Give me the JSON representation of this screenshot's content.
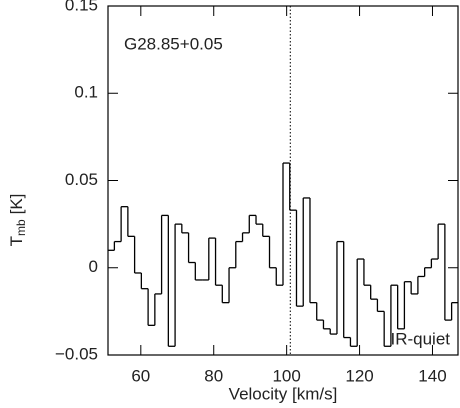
{
  "chart_data": {
    "type": "step",
    "annotations": [
      "G28.85+0.05",
      "IR-quiet"
    ],
    "xlabel": "Velocity [km/s]",
    "ylabel": {
      "main": "T",
      "sub": "mb",
      "unit": "[K]"
    },
    "xlim": [
      51,
      147
    ],
    "ylim": [
      -0.05,
      0.15
    ],
    "xticks": [
      60,
      80,
      100,
      120,
      140
    ],
    "yticks": [
      {
        "value": -0.05,
        "label": "−0.05"
      },
      0,
      0.05,
      0.1,
      0.15
    ],
    "vline": 101,
    "color": "#000000",
    "x": [
      51.8,
      53.7,
      55.5,
      57.4,
      59.2,
      61.1,
      62.9,
      64.8,
      66.6,
      68.5,
      70.3,
      72.2,
      74.0,
      75.9,
      77.7,
      79.6,
      81.4,
      83.3,
      85.1,
      87.0,
      88.8,
      90.7,
      92.5,
      94.4,
      96.2,
      98.1,
      99.9,
      101.8,
      103.6,
      105.5,
      107.3,
      109.2,
      111.0,
      112.9,
      114.7,
      116.6,
      118.4,
      120.3,
      122.1,
      124.0,
      125.8,
      127.7,
      129.5,
      131.4,
      133.2,
      135.1,
      136.9,
      138.8,
      140.6,
      142.5,
      144.3,
      146.2
    ],
    "values": [
      0.01,
      0.015,
      0.035,
      0.018,
      -0.003,
      -0.012,
      -0.033,
      -0.015,
      0.03,
      -0.045,
      0.025,
      0.02,
      0.003,
      -0.007,
      -0.007,
      0.017,
      -0.01,
      -0.02,
      0.0,
      0.015,
      0.02,
      0.03,
      0.025,
      0.018,
      0.0,
      -0.01,
      0.06,
      0.033,
      -0.022,
      0.04,
      -0.02,
      -0.03,
      -0.035,
      -0.038,
      0.015,
      -0.04,
      -0.045,
      0.005,
      -0.01,
      -0.018,
      -0.025,
      -0.045,
      -0.01,
      -0.035,
      -0.008,
      -0.015,
      -0.005,
      0.0,
      0.005,
      0.025,
      -0.03,
      -0.02
    ]
  }
}
